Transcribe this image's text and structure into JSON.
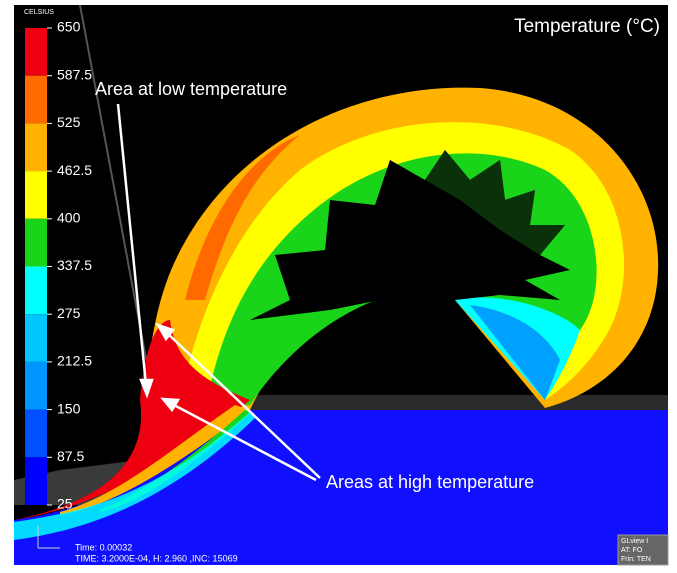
{
  "legend": {
    "title": "CELSIUS",
    "levels": [
      650,
      587.5,
      525,
      462.5,
      400,
      337.5,
      275,
      212.5,
      150,
      87.5,
      25
    ],
    "colors": [
      "#ee0010",
      "#ff6a00",
      "#ffb300",
      "#ffff00",
      "#19d419",
      "#00ffff",
      "#00c8ff",
      "#0096ff",
      "#0050ff",
      "#0000ff"
    ]
  },
  "annotations": {
    "title": "Temperature (°C)",
    "low": "Area at low temperature",
    "high": "Areas at high temperature"
  },
  "footer": {
    "time": "Time: 0.00032",
    "info": "TIME: 3.2000E-04, H: 2.960   ,INC: 15069"
  },
  "viewer": {
    "lines": [
      "GLview I",
      "AT:  FO",
      "Frin: TEN"
    ]
  }
}
